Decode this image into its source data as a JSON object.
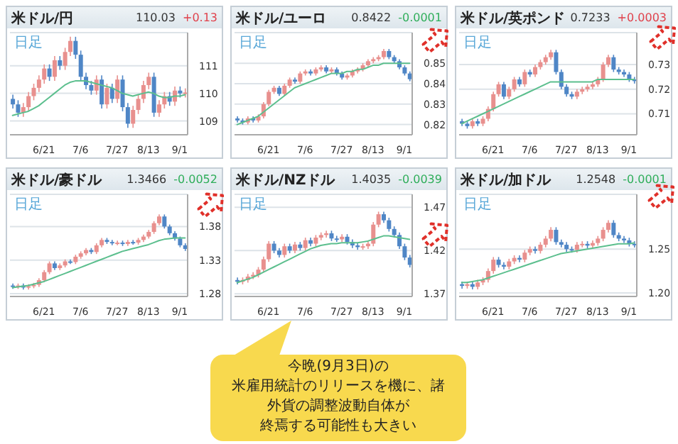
{
  "chart_data": [
    {
      "type": "candlestick",
      "title": "米ドル/円",
      "annotations": [
        "日足",
        "110.03",
        "+0.13"
      ],
      "grid": "y",
      "categories": [
        null,
        null,
        null,
        null,
        null,
        null,
        "6/21",
        null,
        null,
        null,
        null,
        null,
        null,
        "7/6",
        null,
        null,
        null,
        null,
        null,
        null,
        "7/27",
        null,
        null,
        null,
        null,
        null,
        "8/13",
        null,
        null,
        null,
        null,
        null,
        "9/1",
        null
      ],
      "ylim": [
        108.5,
        112.2
      ],
      "yticks": [
        109,
        110,
        111
      ],
      "ohlc": [
        [
          109.8,
          109.95,
          109.45,
          109.6
        ],
        [
          109.6,
          109.75,
          109.15,
          109.3
        ],
        [
          109.3,
          109.65,
          109.15,
          109.5
        ],
        [
          109.5,
          110.05,
          109.35,
          109.9
        ],
        [
          109.9,
          110.35,
          109.75,
          110.2
        ],
        [
          110.2,
          110.65,
          110.05,
          110.5
        ],
        [
          110.5,
          111.05,
          110.35,
          110.9
        ],
        [
          110.9,
          111.05,
          110.45,
          110.6
        ],
        [
          110.6,
          111.35,
          110.45,
          111.2
        ],
        [
          111.2,
          111.35,
          110.85,
          111.0
        ],
        [
          111.0,
          111.65,
          110.85,
          111.5
        ],
        [
          111.5,
          112.05,
          111.35,
          111.9
        ],
        [
          111.9,
          112.05,
          111.25,
          111.4
        ],
        [
          111.4,
          111.55,
          110.45,
          110.6
        ],
        [
          110.6,
          110.75,
          110.15,
          110.3
        ],
        [
          110.3,
          110.45,
          109.95,
          110.1
        ],
        [
          110.1,
          110.65,
          109.95,
          110.5
        ],
        [
          110.5,
          110.65,
          109.45,
          109.6
        ],
        [
          109.6,
          110.35,
          109.45,
          110.2
        ],
        [
          110.2,
          110.35,
          109.65,
          109.8
        ],
        [
          109.8,
          110.65,
          109.65,
          110.5
        ],
        [
          110.5,
          110.65,
          109.35,
          109.5
        ],
        [
          109.5,
          109.65,
          108.75,
          108.9
        ],
        [
          108.9,
          109.55,
          108.75,
          109.4
        ],
        [
          109.4,
          109.95,
          109.25,
          109.8
        ],
        [
          109.8,
          110.45,
          109.65,
          110.3
        ],
        [
          110.3,
          110.75,
          110.15,
          110.6
        ],
        [
          110.6,
          110.75,
          109.15,
          109.3
        ],
        [
          109.3,
          109.75,
          109.15,
          109.6
        ],
        [
          109.6,
          110.05,
          109.45,
          109.9
        ],
        [
          109.9,
          110.05,
          109.55,
          109.7
        ],
        [
          109.7,
          110.25,
          109.55,
          110.1
        ],
        [
          110.1,
          110.25,
          109.85,
          110.0
        ],
        [
          110.0,
          110.18,
          109.85,
          110.03
        ]
      ],
      "colors": [
        "#4f86c6",
        "#4f86c6",
        "#e8908e",
        "#e8908e",
        "#e8908e",
        "#e8908e",
        "#e8908e",
        "#4f86c6",
        "#e8908e",
        "#4f86c6",
        "#e8908e",
        "#e8908e",
        "#4f86c6",
        "#4f86c6",
        "#4f86c6",
        "#4f86c6",
        "#e8908e",
        "#4f86c6",
        "#e8908e",
        "#4f86c6",
        "#e8908e",
        "#4f86c6",
        "#4f86c6",
        "#e8908e",
        "#e8908e",
        "#e8908e",
        "#e8908e",
        "#4f86c6",
        "#e8908e",
        "#e8908e",
        "#4f86c6",
        "#e8908e",
        "#4f86c6",
        "#e8908e"
      ],
      "series": [
        {
          "type": "line",
          "color": "#5cbf8e",
          "values": [
            109.2,
            109.25,
            109.3,
            109.35,
            109.45,
            109.55,
            109.7,
            109.85,
            110.0,
            110.15,
            110.3,
            110.4,
            110.45,
            110.45,
            110.45,
            110.4,
            110.35,
            110.3,
            110.25,
            110.2,
            110.1,
            110.0,
            109.95,
            109.9,
            109.95,
            110.0,
            110.05,
            110.0,
            109.9,
            109.85,
            109.85,
            109.9,
            109.9,
            109.95
          ]
        }
      ]
    },
    {
      "type": "candlestick",
      "title": "米ドル/ユーロ",
      "annotations": [
        "日足",
        "0.8422",
        "-0.0001"
      ],
      "grid": "y",
      "categories": [
        null,
        null,
        null,
        null,
        null,
        null,
        "6/21",
        null,
        null,
        null,
        null,
        null,
        null,
        "7/6",
        null,
        null,
        null,
        null,
        null,
        null,
        "7/27",
        null,
        null,
        null,
        null,
        null,
        "8/13",
        null,
        null,
        null,
        null,
        null,
        "9/1",
        null
      ],
      "ylim": [
        0.815,
        0.865
      ],
      "yticks": [
        0.82,
        0.83,
        0.84,
        0.85
      ],
      "ohlc": [
        [
          0.823,
          0.824,
          0.821,
          0.822
        ],
        [
          0.822,
          0.823,
          0.82,
          0.821
        ],
        [
          0.821,
          0.824,
          0.82,
          0.823
        ],
        [
          0.823,
          0.824,
          0.821,
          0.822
        ],
        [
          0.822,
          0.825,
          0.821,
          0.824
        ],
        [
          0.824,
          0.831,
          0.823,
          0.83
        ],
        [
          0.83,
          0.837,
          0.829,
          0.836
        ],
        [
          0.836,
          0.839,
          0.835,
          0.838
        ],
        [
          0.838,
          0.839,
          0.834,
          0.835
        ],
        [
          0.835,
          0.84,
          0.834,
          0.839
        ],
        [
          0.839,
          0.843,
          0.838,
          0.842
        ],
        [
          0.842,
          0.843,
          0.84,
          0.841
        ],
        [
          0.841,
          0.846,
          0.84,
          0.845
        ],
        [
          0.845,
          0.847,
          0.844,
          0.846
        ],
        [
          0.846,
          0.847,
          0.844,
          0.845
        ],
        [
          0.845,
          0.848,
          0.844,
          0.847
        ],
        [
          0.847,
          0.849,
          0.846,
          0.848
        ],
        [
          0.848,
          0.849,
          0.845,
          0.846
        ],
        [
          0.846,
          0.848,
          0.845,
          0.847
        ],
        [
          0.847,
          0.848,
          0.844,
          0.845
        ],
        [
          0.845,
          0.846,
          0.842,
          0.843
        ],
        [
          0.843,
          0.845,
          0.842,
          0.844
        ],
        [
          0.844,
          0.847,
          0.843,
          0.846
        ],
        [
          0.846,
          0.848,
          0.845,
          0.847
        ],
        [
          0.847,
          0.85,
          0.846,
          0.849
        ],
        [
          0.849,
          0.852,
          0.848,
          0.851
        ],
        [
          0.851,
          0.853,
          0.85,
          0.852
        ],
        [
          0.852,
          0.854,
          0.851,
          0.853
        ],
        [
          0.853,
          0.857,
          0.852,
          0.856
        ],
        [
          0.856,
          0.857,
          0.852,
          0.853
        ],
        [
          0.853,
          0.854,
          0.85,
          0.851
        ],
        [
          0.851,
          0.852,
          0.847,
          0.848
        ],
        [
          0.848,
          0.849,
          0.844,
          0.845
        ],
        [
          0.845,
          0.846,
          0.8412,
          0.8422
        ]
      ],
      "colors": [
        "#4f86c6",
        "#4f86c6",
        "#e8908e",
        "#4f86c6",
        "#e8908e",
        "#e8908e",
        "#e8908e",
        "#e8908e",
        "#4f86c6",
        "#e8908e",
        "#e8908e",
        "#4f86c6",
        "#e8908e",
        "#e8908e",
        "#4f86c6",
        "#e8908e",
        "#e8908e",
        "#4f86c6",
        "#e8908e",
        "#4f86c6",
        "#4f86c6",
        "#e8908e",
        "#e8908e",
        "#e8908e",
        "#e8908e",
        "#e8908e",
        "#e8908e",
        "#e8908e",
        "#e8908e",
        "#4f86c6",
        "#4f86c6",
        "#4f86c6",
        "#4f86c6",
        "#4f86c6"
      ],
      "series": [
        {
          "type": "line",
          "color": "#5cbf8e",
          "values": [
            0.82,
            0.821,
            0.822,
            0.823,
            0.824,
            0.826,
            0.828,
            0.83,
            0.832,
            0.834,
            0.836,
            0.838,
            0.839,
            0.84,
            0.841,
            0.842,
            0.843,
            0.844,
            0.845,
            0.845,
            0.845,
            0.846,
            0.846,
            0.847,
            0.847,
            0.848,
            0.849,
            0.849,
            0.85,
            0.85,
            0.85,
            0.85,
            0.85,
            0.85
          ]
        }
      ]
    },
    {
      "type": "candlestick",
      "title": "米ドル/英ポンド",
      "annotations": [
        "日足",
        "0.7233",
        "+0.0003"
      ],
      "grid": "y",
      "categories": [
        null,
        null,
        null,
        null,
        null,
        null,
        "6/21",
        null,
        null,
        null,
        null,
        null,
        null,
        "7/6",
        null,
        null,
        null,
        null,
        null,
        null,
        "7/27",
        null,
        null,
        null,
        null,
        null,
        "8/13",
        null,
        null,
        null,
        null,
        null,
        "9/1",
        null
      ],
      "ylim": [
        0.7015,
        0.743
      ],
      "yticks": [
        0.71,
        0.72,
        0.73
      ],
      "ohlc": [
        [
          0.707,
          0.708,
          0.705,
          0.706
        ],
        [
          0.706,
          0.707,
          0.704,
          0.705
        ],
        [
          0.705,
          0.708,
          0.704,
          0.707
        ],
        [
          0.707,
          0.708,
          0.705,
          0.706
        ],
        [
          0.706,
          0.709,
          0.705,
          0.708
        ],
        [
          0.708,
          0.713,
          0.707,
          0.712
        ],
        [
          0.712,
          0.719,
          0.711,
          0.718
        ],
        [
          0.718,
          0.723,
          0.717,
          0.722
        ],
        [
          0.722,
          0.723,
          0.716,
          0.717
        ],
        [
          0.717,
          0.721,
          0.716,
          0.72
        ],
        [
          0.72,
          0.725,
          0.719,
          0.724
        ],
        [
          0.724,
          0.725,
          0.721,
          0.722
        ],
        [
          0.722,
          0.728,
          0.721,
          0.727
        ],
        [
          0.727,
          0.728,
          0.725,
          0.726
        ],
        [
          0.726,
          0.73,
          0.725,
          0.729
        ],
        [
          0.729,
          0.732,
          0.728,
          0.731
        ],
        [
          0.731,
          0.734,
          0.73,
          0.733
        ],
        [
          0.733,
          0.736,
          0.732,
          0.735
        ],
        [
          0.735,
          0.736,
          0.726,
          0.727
        ],
        [
          0.727,
          0.728,
          0.72,
          0.721
        ],
        [
          0.721,
          0.722,
          0.717,
          0.718
        ],
        [
          0.718,
          0.719,
          0.716,
          0.717
        ],
        [
          0.717,
          0.72,
          0.716,
          0.719
        ],
        [
          0.719,
          0.721,
          0.718,
          0.72
        ],
        [
          0.72,
          0.722,
          0.719,
          0.721
        ],
        [
          0.721,
          0.723,
          0.72,
          0.722
        ],
        [
          0.722,
          0.725,
          0.721,
          0.724
        ],
        [
          0.724,
          0.731,
          0.723,
          0.73
        ],
        [
          0.73,
          0.734,
          0.729,
          0.733
        ],
        [
          0.733,
          0.734,
          0.727,
          0.728
        ],
        [
          0.728,
          0.729,
          0.726,
          0.727
        ],
        [
          0.727,
          0.728,
          0.725,
          0.726
        ],
        [
          0.726,
          0.727,
          0.723,
          0.724
        ],
        [
          0.724,
          0.725,
          0.7223,
          0.7233
        ]
      ],
      "colors": [
        "#4f86c6",
        "#4f86c6",
        "#e8908e",
        "#4f86c6",
        "#e8908e",
        "#e8908e",
        "#e8908e",
        "#e8908e",
        "#4f86c6",
        "#e8908e",
        "#e8908e",
        "#4f86c6",
        "#e8908e",
        "#4f86c6",
        "#e8908e",
        "#e8908e",
        "#e8908e",
        "#e8908e",
        "#4f86c6",
        "#4f86c6",
        "#4f86c6",
        "#4f86c6",
        "#e8908e",
        "#e8908e",
        "#e8908e",
        "#e8908e",
        "#e8908e",
        "#e8908e",
        "#e8908e",
        "#4f86c6",
        "#4f86c6",
        "#4f86c6",
        "#4f86c6",
        "#4f86c6"
      ],
      "series": [
        {
          "type": "line",
          "color": "#5cbf8e",
          "values": [
            0.706,
            0.707,
            0.708,
            0.709,
            0.71,
            0.711,
            0.712,
            0.713,
            0.714,
            0.715,
            0.716,
            0.717,
            0.718,
            0.719,
            0.72,
            0.721,
            0.722,
            0.723,
            0.723,
            0.723,
            0.723,
            0.723,
            0.723,
            0.723,
            0.723,
            0.723,
            0.724,
            0.724,
            0.724,
            0.724,
            0.724,
            0.724,
            0.724,
            0.724
          ]
        }
      ]
    },
    {
      "type": "candlestick",
      "title": "米ドル/豪ドル",
      "annotations": [
        "日足",
        "1.3466",
        "-0.0052"
      ],
      "grid": "y",
      "categories": [
        null,
        null,
        null,
        null,
        null,
        null,
        "6/21",
        null,
        null,
        null,
        null,
        null,
        null,
        "7/6",
        null,
        null,
        null,
        null,
        null,
        null,
        "7/27",
        null,
        null,
        null,
        null,
        null,
        "8/13",
        null,
        null,
        null,
        null,
        null,
        "9/1",
        null
      ],
      "ylim": [
        1.2757,
        1.428
      ],
      "yticks": [
        1.28,
        1.33,
        1.38
      ],
      "ohlc": [
        [
          1.292,
          1.295,
          1.287,
          1.29
        ],
        [
          1.29,
          1.295,
          1.287,
          1.292
        ],
        [
          1.292,
          1.295,
          1.286,
          1.289
        ],
        [
          1.289,
          1.294,
          1.286,
          1.291
        ],
        [
          1.291,
          1.296,
          1.288,
          1.293
        ],
        [
          1.293,
          1.303,
          1.29,
          1.3
        ],
        [
          1.3,
          1.315,
          1.297,
          1.312
        ],
        [
          1.312,
          1.328,
          1.309,
          1.325
        ],
        [
          1.325,
          1.328,
          1.315,
          1.318
        ],
        [
          1.318,
          1.325,
          1.315,
          1.322
        ],
        [
          1.322,
          1.331,
          1.319,
          1.328
        ],
        [
          1.328,
          1.331,
          1.324,
          1.327
        ],
        [
          1.327,
          1.338,
          1.324,
          1.335
        ],
        [
          1.335,
          1.343,
          1.332,
          1.34
        ],
        [
          1.34,
          1.348,
          1.337,
          1.345
        ],
        [
          1.345,
          1.348,
          1.339,
          1.342
        ],
        [
          1.342,
          1.355,
          1.339,
          1.352
        ],
        [
          1.352,
          1.363,
          1.349,
          1.36
        ],
        [
          1.36,
          1.363,
          1.354,
          1.357
        ],
        [
          1.357,
          1.36,
          1.352,
          1.355
        ],
        [
          1.355,
          1.359,
          1.352,
          1.356
        ],
        [
          1.356,
          1.359,
          1.351,
          1.354
        ],
        [
          1.354,
          1.36,
          1.351,
          1.357
        ],
        [
          1.357,
          1.36,
          1.353,
          1.356
        ],
        [
          1.356,
          1.363,
          1.353,
          1.36
        ],
        [
          1.36,
          1.368,
          1.357,
          1.365
        ],
        [
          1.365,
          1.375,
          1.362,
          1.372
        ],
        [
          1.372,
          1.388,
          1.369,
          1.385
        ],
        [
          1.385,
          1.398,
          1.382,
          1.395
        ],
        [
          1.395,
          1.398,
          1.377,
          1.38
        ],
        [
          1.38,
          1.383,
          1.367,
          1.37
        ],
        [
          1.37,
          1.373,
          1.359,
          1.362
        ],
        [
          1.362,
          1.365,
          1.349,
          1.352
        ],
        [
          1.352,
          1.355,
          1.3436,
          1.3466
        ]
      ],
      "colors": [
        "#4f86c6",
        "#e8908e",
        "#4f86c6",
        "#e8908e",
        "#e8908e",
        "#e8908e",
        "#e8908e",
        "#e8908e",
        "#4f86c6",
        "#e8908e",
        "#e8908e",
        "#4f86c6",
        "#e8908e",
        "#e8908e",
        "#e8908e",
        "#4f86c6",
        "#e8908e",
        "#e8908e",
        "#4f86c6",
        "#4f86c6",
        "#e8908e",
        "#4f86c6",
        "#e8908e",
        "#4f86c6",
        "#e8908e",
        "#e8908e",
        "#e8908e",
        "#e8908e",
        "#e8908e",
        "#4f86c6",
        "#4f86c6",
        "#4f86c6",
        "#4f86c6",
        "#4f86c6"
      ],
      "series": [
        {
          "type": "line",
          "color": "#5cbf8e",
          "values": [
            1.289,
            1.29,
            1.291,
            1.292,
            1.294,
            1.296,
            1.298,
            1.301,
            1.304,
            1.307,
            1.31,
            1.313,
            1.316,
            1.319,
            1.322,
            1.325,
            1.328,
            1.331,
            1.334,
            1.337,
            1.34,
            1.343,
            1.345,
            1.347,
            1.349,
            1.351,
            1.353,
            1.356,
            1.359,
            1.361,
            1.362,
            1.363,
            1.363,
            1.363
          ]
        }
      ]
    },
    {
      "type": "candlestick",
      "title": "米ドル/NZドル",
      "annotations": [
        "日足",
        "1.4035",
        "-0.0039"
      ],
      "grid": "y",
      "categories": [
        null,
        null,
        null,
        null,
        null,
        null,
        "6/21",
        null,
        null,
        null,
        null,
        null,
        null,
        "7/6",
        null,
        null,
        null,
        null,
        null,
        null,
        "7/27",
        null,
        null,
        null,
        null,
        null,
        "8/13",
        null,
        null,
        null,
        null,
        null,
        "9/1",
        null
      ],
      "ylim": [
        1.367,
        1.485
      ],
      "yticks": [
        1.37,
        1.42,
        1.47
      ],
      "ohlc": [
        [
          1.386,
          1.389,
          1.381,
          1.384
        ],
        [
          1.384,
          1.389,
          1.381,
          1.386
        ],
        [
          1.386,
          1.393,
          1.383,
          1.39
        ],
        [
          1.39,
          1.395,
          1.387,
          1.392
        ],
        [
          1.392,
          1.401,
          1.389,
          1.398
        ],
        [
          1.398,
          1.413,
          1.395,
          1.41
        ],
        [
          1.41,
          1.431,
          1.407,
          1.428
        ],
        [
          1.428,
          1.431,
          1.417,
          1.42
        ],
        [
          1.42,
          1.423,
          1.412,
          1.415
        ],
        [
          1.415,
          1.428,
          1.412,
          1.425
        ],
        [
          1.425,
          1.428,
          1.417,
          1.42
        ],
        [
          1.42,
          1.43,
          1.417,
          1.427
        ],
        [
          1.427,
          1.43,
          1.42,
          1.423
        ],
        [
          1.423,
          1.435,
          1.42,
          1.432
        ],
        [
          1.432,
          1.435,
          1.425,
          1.428
        ],
        [
          1.428,
          1.438,
          1.425,
          1.435
        ],
        [
          1.435,
          1.441,
          1.432,
          1.438
        ],
        [
          1.438,
          1.443,
          1.435,
          1.44
        ],
        [
          1.44,
          1.443,
          1.431,
          1.434
        ],
        [
          1.434,
          1.437,
          1.43,
          1.433
        ],
        [
          1.433,
          1.439,
          1.43,
          1.436
        ],
        [
          1.436,
          1.439,
          1.427,
          1.43
        ],
        [
          1.43,
          1.433,
          1.423,
          1.426
        ],
        [
          1.426,
          1.429,
          1.421,
          1.424
        ],
        [
          1.424,
          1.428,
          1.421,
          1.425
        ],
        [
          1.425,
          1.431,
          1.422,
          1.428
        ],
        [
          1.428,
          1.453,
          1.425,
          1.45
        ],
        [
          1.45,
          1.465,
          1.447,
          1.462
        ],
        [
          1.462,
          1.465,
          1.452,
          1.455
        ],
        [
          1.455,
          1.458,
          1.442,
          1.445
        ],
        [
          1.445,
          1.448,
          1.435,
          1.438
        ],
        [
          1.438,
          1.441,
          1.422,
          1.425
        ],
        [
          1.425,
          1.428,
          1.409,
          1.412
        ],
        [
          1.412,
          1.415,
          1.4005,
          1.4035
        ]
      ],
      "colors": [
        "#4f86c6",
        "#e8908e",
        "#e8908e",
        "#e8908e",
        "#e8908e",
        "#e8908e",
        "#e8908e",
        "#4f86c6",
        "#4f86c6",
        "#e8908e",
        "#4f86c6",
        "#e8908e",
        "#4f86c6",
        "#e8908e",
        "#4f86c6",
        "#e8908e",
        "#e8908e",
        "#e8908e",
        "#4f86c6",
        "#4f86c6",
        "#e8908e",
        "#4f86c6",
        "#4f86c6",
        "#4f86c6",
        "#e8908e",
        "#e8908e",
        "#e8908e",
        "#e8908e",
        "#4f86c6",
        "#4f86c6",
        "#4f86c6",
        "#4f86c6",
        "#4f86c6",
        "#4f86c6"
      ],
      "series": [
        {
          "type": "line",
          "color": "#5cbf8e",
          "values": [
            1.383,
            1.385,
            1.387,
            1.389,
            1.392,
            1.395,
            1.398,
            1.401,
            1.404,
            1.407,
            1.41,
            1.413,
            1.416,
            1.419,
            1.422,
            1.424,
            1.426,
            1.427,
            1.428,
            1.428,
            1.429,
            1.429,
            1.429,
            1.429,
            1.43,
            1.431,
            1.433,
            1.435,
            1.437,
            1.437,
            1.436,
            1.435,
            1.434,
            1.433
          ]
        }
      ]
    },
    {
      "type": "candlestick",
      "title": "米ドル/加ドル",
      "annotations": [
        "日足",
        "1.2548",
        "-0.0001"
      ],
      "grid": "y",
      "categories": [
        null,
        null,
        null,
        null,
        null,
        null,
        "6/21",
        null,
        null,
        null,
        null,
        null,
        null,
        "7/6",
        null,
        null,
        null,
        null,
        null,
        null,
        "7/27",
        null,
        null,
        null,
        null,
        null,
        "8/13",
        null,
        null,
        null,
        null,
        null,
        "9/1",
        null
      ],
      "ylim": [
        1.196,
        1.3125
      ],
      "yticks": [
        {
          "value": 1.2,
          "label": "1.20"
        },
        1.25
      ],
      "ohlc": [
        [
          1.21,
          1.213,
          1.205,
          1.208
        ],
        [
          1.208,
          1.213,
          1.205,
          1.21
        ],
        [
          1.21,
          1.213,
          1.204,
          1.207
        ],
        [
          1.207,
          1.215,
          1.204,
          1.212
        ],
        [
          1.212,
          1.218,
          1.209,
          1.215
        ],
        [
          1.215,
          1.228,
          1.212,
          1.225
        ],
        [
          1.225,
          1.241,
          1.222,
          1.238
        ],
        [
          1.238,
          1.241,
          1.229,
          1.232
        ],
        [
          1.232,
          1.235,
          1.227,
          1.23
        ],
        [
          1.23,
          1.239,
          1.227,
          1.236
        ],
        [
          1.236,
          1.243,
          1.233,
          1.24
        ],
        [
          1.24,
          1.243,
          1.235,
          1.238
        ],
        [
          1.238,
          1.249,
          1.235,
          1.246
        ],
        [
          1.246,
          1.253,
          1.243,
          1.25
        ],
        [
          1.25,
          1.253,
          1.245,
          1.248
        ],
        [
          1.248,
          1.258,
          1.245,
          1.255
        ],
        [
          1.255,
          1.265,
          1.252,
          1.262
        ],
        [
          1.262,
          1.275,
          1.259,
          1.272
        ],
        [
          1.272,
          1.275,
          1.255,
          1.258
        ],
        [
          1.258,
          1.261,
          1.252,
          1.255
        ],
        [
          1.255,
          1.258,
          1.247,
          1.25
        ],
        [
          1.25,
          1.253,
          1.246,
          1.249
        ],
        [
          1.249,
          1.258,
          1.246,
          1.255
        ],
        [
          1.255,
          1.259,
          1.252,
          1.256
        ],
        [
          1.256,
          1.259,
          1.251,
          1.254
        ],
        [
          1.254,
          1.26,
          1.251,
          1.257
        ],
        [
          1.257,
          1.265,
          1.254,
          1.262
        ],
        [
          1.262,
          1.275,
          1.259,
          1.272
        ],
        [
          1.272,
          1.283,
          1.269,
          1.28
        ],
        [
          1.28,
          1.283,
          1.263,
          1.266
        ],
        [
          1.266,
          1.269,
          1.259,
          1.262
        ],
        [
          1.262,
          1.265,
          1.257,
          1.26
        ],
        [
          1.26,
          1.263,
          1.253,
          1.256
        ],
        [
          1.256,
          1.259,
          1.2518,
          1.2548
        ]
      ],
      "colors": [
        "#4f86c6",
        "#e8908e",
        "#4f86c6",
        "#e8908e",
        "#e8908e",
        "#e8908e",
        "#e8908e",
        "#4f86c6",
        "#4f86c6",
        "#e8908e",
        "#e8908e",
        "#4f86c6",
        "#e8908e",
        "#e8908e",
        "#4f86c6",
        "#e8908e",
        "#e8908e",
        "#e8908e",
        "#4f86c6",
        "#4f86c6",
        "#4f86c6",
        "#4f86c6",
        "#e8908e",
        "#e8908e",
        "#4f86c6",
        "#e8908e",
        "#e8908e",
        "#e8908e",
        "#e8908e",
        "#4f86c6",
        "#4f86c6",
        "#4f86c6",
        "#4f86c6",
        "#4f86c6"
      ],
      "series": [
        {
          "type": "line",
          "color": "#5cbf8e",
          "values": [
            1.212,
            1.212,
            1.213,
            1.214,
            1.215,
            1.217,
            1.219,
            1.221,
            1.223,
            1.225,
            1.227,
            1.229,
            1.231,
            1.233,
            1.235,
            1.237,
            1.239,
            1.241,
            1.243,
            1.245,
            1.246,
            1.247,
            1.248,
            1.249,
            1.25,
            1.251,
            1.252,
            1.253,
            1.254,
            1.255,
            1.256,
            1.256,
            1.256,
            1.257
          ]
        }
      ]
    },
    {
      "type": "other",
      "annotations": [
        "今晩(9月3日)の",
        "米雇用統計のリリースを機に、諸",
        "外貨の調整波動自体が",
        "終焉する可能性も大きい"
      ]
    }
  ]
}
